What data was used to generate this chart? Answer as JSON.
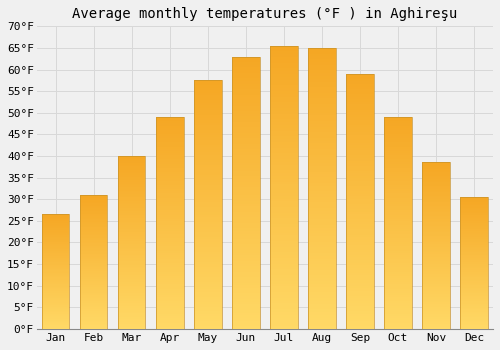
{
  "title": "Average monthly temperatures (°F ) in Aghireşu",
  "months": [
    "Jan",
    "Feb",
    "Mar",
    "Apr",
    "May",
    "Jun",
    "Jul",
    "Aug",
    "Sep",
    "Oct",
    "Nov",
    "Dec"
  ],
  "values": [
    26.5,
    31.0,
    40.0,
    49.0,
    57.5,
    63.0,
    65.5,
    65.0,
    59.0,
    49.0,
    38.5,
    30.5
  ],
  "bar_color_top": "#F5A623",
  "bar_color_bottom": "#FFD966",
  "bar_edge_color": "#C8922A",
  "background_color": "#F0F0F0",
  "ylim": [
    0,
    70
  ],
  "yticks": [
    0,
    5,
    10,
    15,
    20,
    25,
    30,
    35,
    40,
    45,
    50,
    55,
    60,
    65,
    70
  ],
  "ytick_labels": [
    "0°F",
    "5°F",
    "10°F",
    "15°F",
    "20°F",
    "25°F",
    "30°F",
    "35°F",
    "40°F",
    "45°F",
    "50°F",
    "55°F",
    "60°F",
    "65°F",
    "70°F"
  ],
  "title_fontsize": 10,
  "tick_fontsize": 8,
  "grid_color": "#D8D8D8",
  "font_family": "monospace"
}
